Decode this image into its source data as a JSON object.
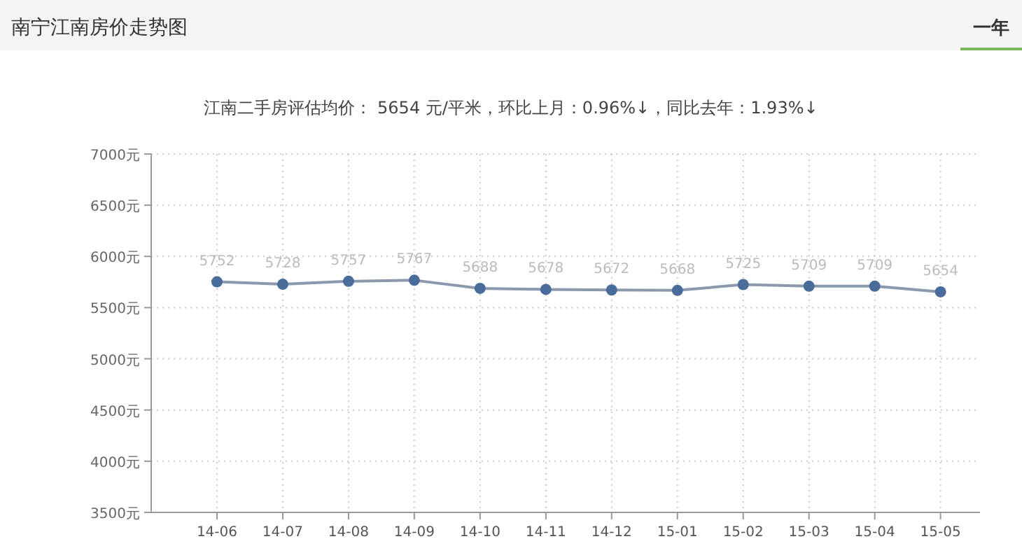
{
  "chart_data": {
    "type": "line",
    "title": "南宁江南房价走势图",
    "subtitle": "江南二手房评估均价： 5654 元/平米，环比上月：0.96%↓，同比去年：1.93%↓",
    "annotations": [
      "一年"
    ],
    "categories": [
      "14-06",
      "14-07",
      "14-08",
      "14-09",
      "14-10",
      "14-11",
      "14-12",
      "15-01",
      "15-02",
      "15-03",
      "15-04",
      "15-05"
    ],
    "series": [
      {
        "color": "#4a6c9b",
        "values": [
          5752,
          5728,
          5757,
          5767,
          5688,
          5678,
          5672,
          5668,
          5725,
          5709,
          5709,
          5654
        ]
      }
    ],
    "ylim": [
      3500,
      7000
    ],
    "yticks": [
      {
        "value": 3500,
        "label": "3500元"
      },
      {
        "value": 4000,
        "label": "4000元"
      },
      {
        "value": 4500,
        "label": "4500元"
      },
      {
        "value": 5000,
        "label": "5000元"
      },
      {
        "value": 5500,
        "label": "5500元"
      },
      {
        "value": 6000,
        "label": "6000元"
      },
      {
        "value": 6500,
        "label": "6500元"
      },
      {
        "value": 7000,
        "label": "7000元"
      }
    ],
    "grid": true,
    "marker": "circle",
    "data_labels": true
  }
}
